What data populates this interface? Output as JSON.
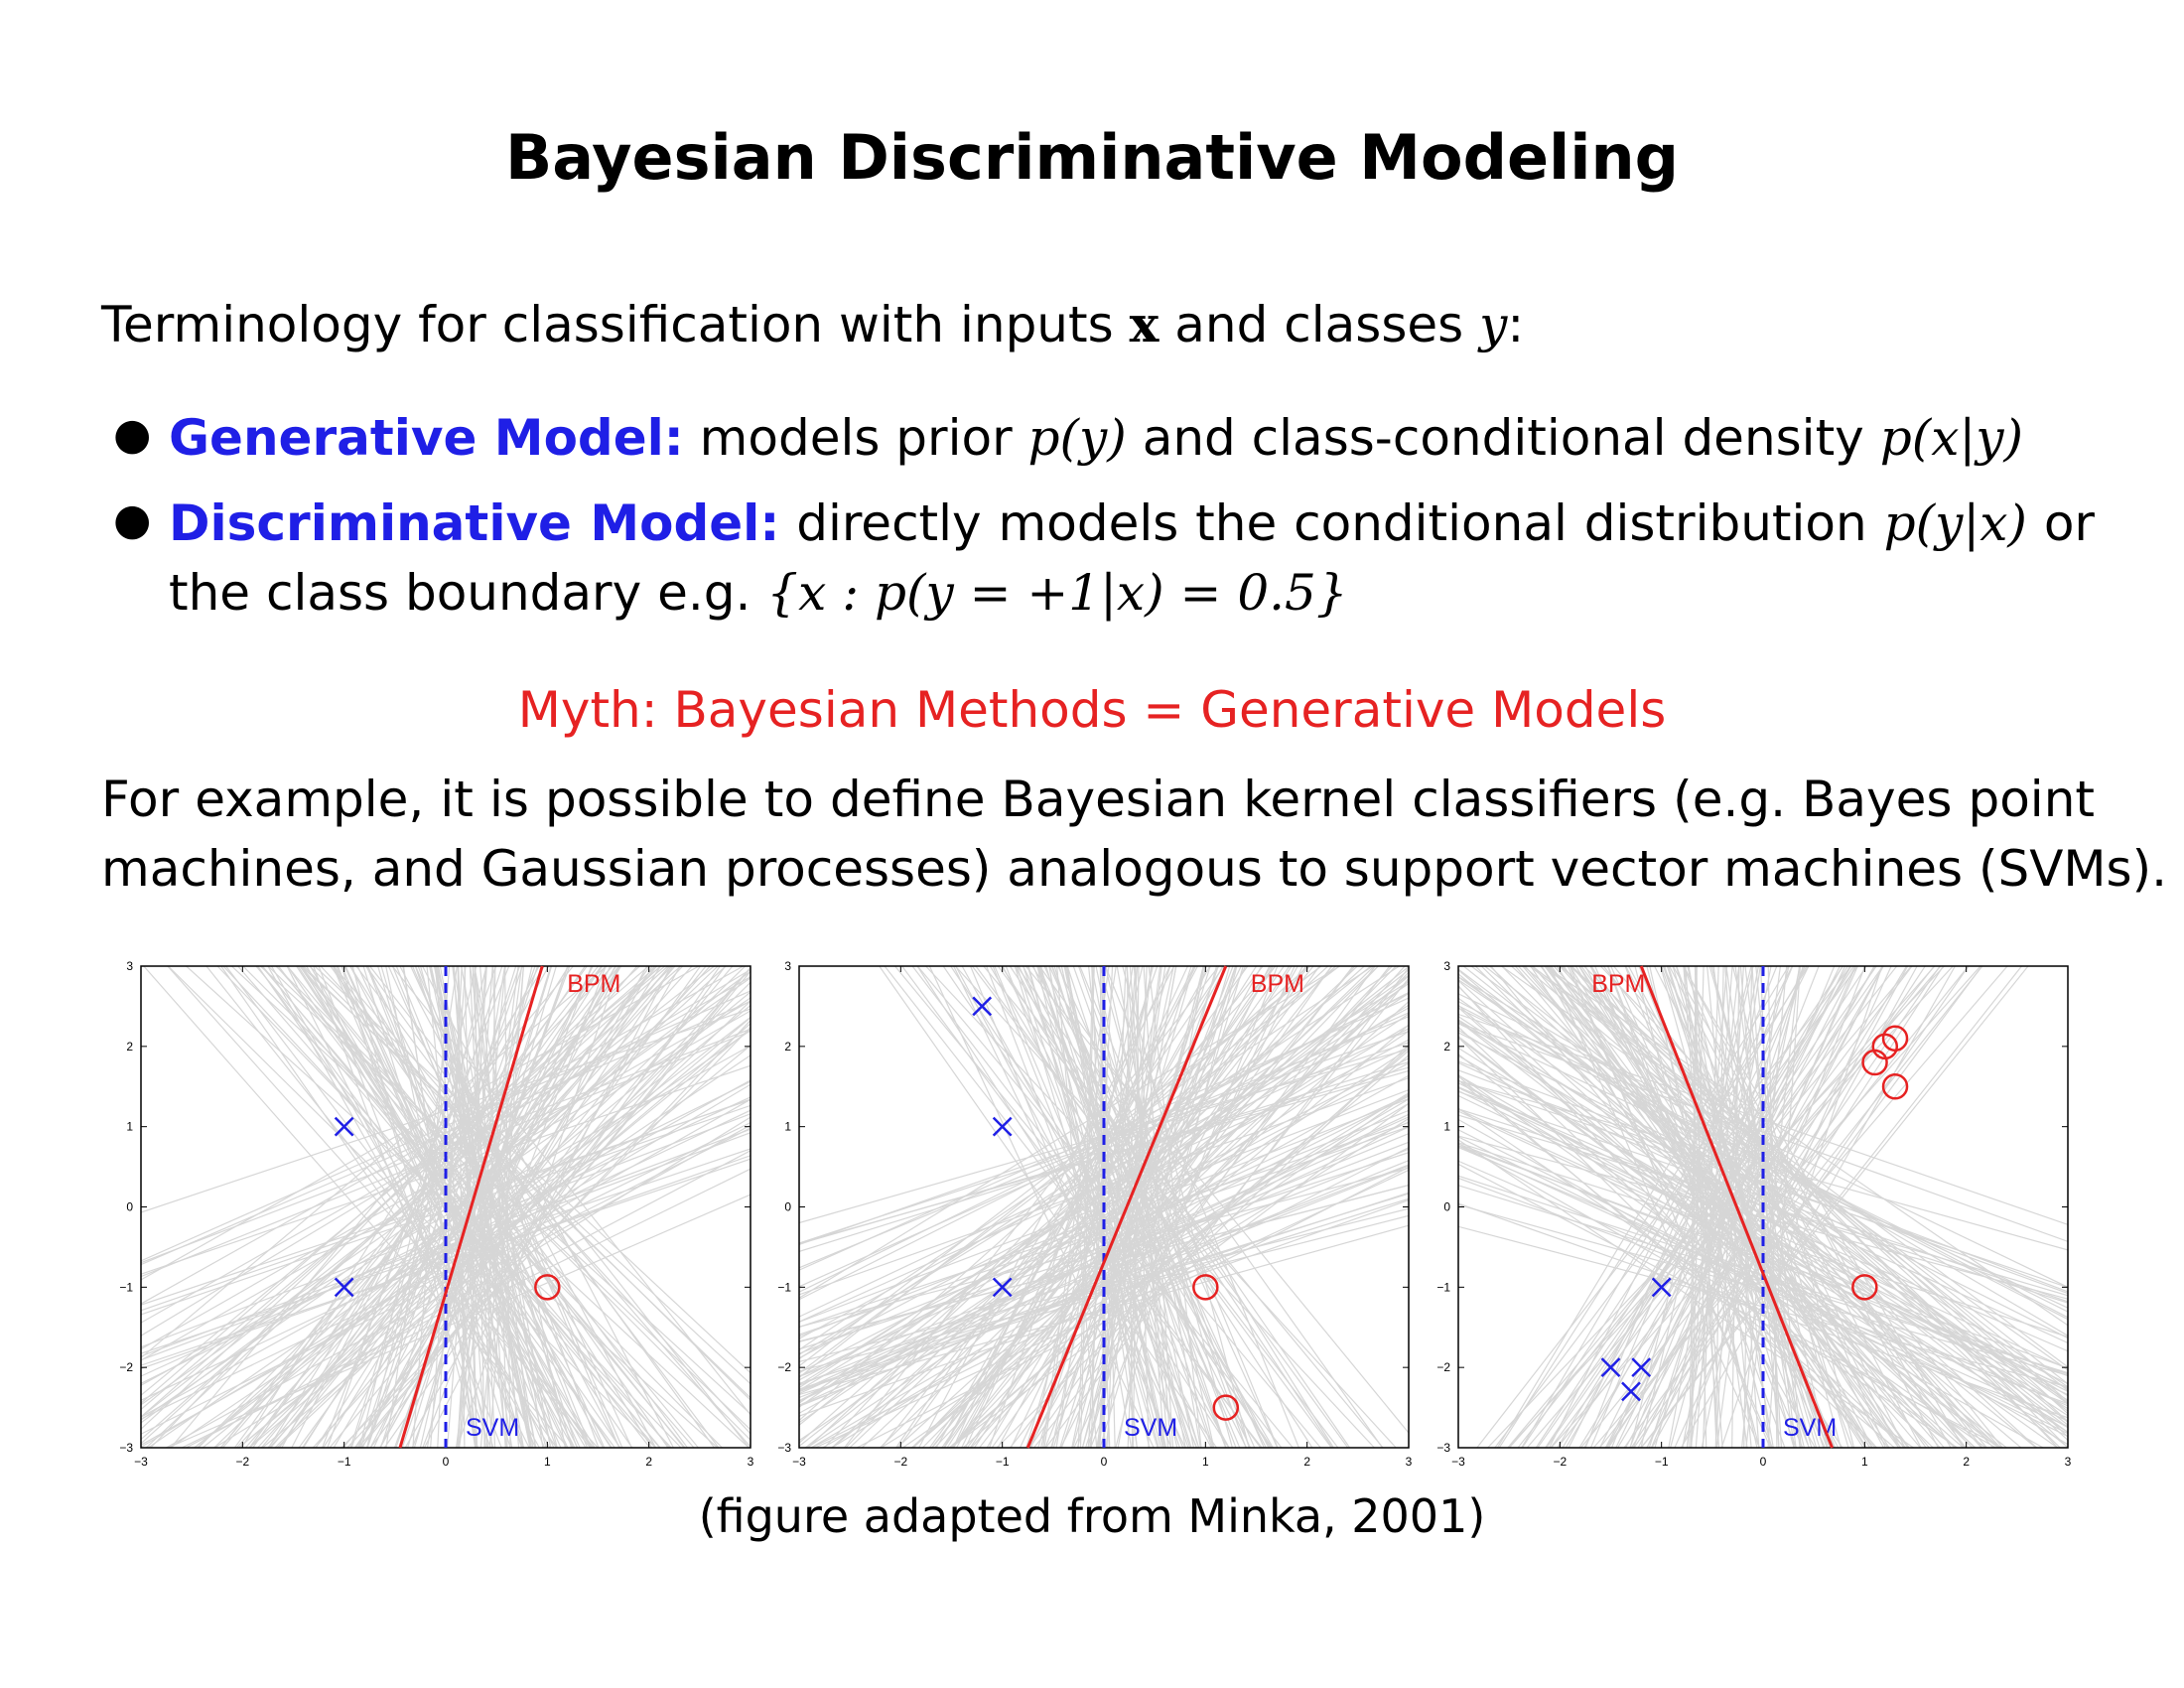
{
  "title": "Bayesian Discriminative Modeling",
  "intro": {
    "text": "Terminology for classification with inputs",
    "x": "x",
    "and": "and classes",
    "y": "y",
    "colon": ":"
  },
  "bullets": [
    {
      "term": "Generative Model:",
      "text": "models prior",
      "m1": "p(y)",
      "mid": "and class-conditional density",
      "m2": "p(x|y)"
    },
    {
      "term": "Discriminative Model:",
      "text": "directly models the conditional distribution",
      "m1": "p(y|x)",
      "or": "or",
      "line2": "the class boundary e.g.",
      "m2": "{x : p(y = +1|x) = 0.5}"
    }
  ],
  "myth": "Myth:  Bayesian Methods = Generative Models",
  "example": {
    "line1": "For example, it is possible to define Bayesian kernel classifiers (e.g. Bayes point",
    "line2": "machines, and Gaussian processes) analogous to support vector machines (SVMs)."
  },
  "caption": "(figure adapted from Minka, 2001)",
  "colors": {
    "term": "#1f1fe6",
    "myth": "#e62222",
    "bpm": "#e62222",
    "svm": "#1f1fe6",
    "sample_lines": "#d6d6d6"
  },
  "chart_data": [
    {
      "type": "scatter",
      "xlim": [
        -3,
        3
      ],
      "ylim": [
        -3,
        3
      ],
      "xticks": [
        "−3",
        "−2",
        "−1",
        "0",
        "1",
        "2",
        "3"
      ],
      "yticks": [
        "−3",
        "−2",
        "−1",
        "0",
        "1",
        "2",
        "3"
      ],
      "neg_points": [
        [
          -1,
          1
        ],
        [
          -1,
          -1
        ]
      ],
      "pos_points": [
        [
          1,
          -1
        ]
      ],
      "svm": {
        "label": "SVM",
        "x": 0
      },
      "bpm": {
        "label": "BPM",
        "p1": [
          -0.45,
          -3
        ],
        "p2": [
          0.95,
          3
        ]
      }
    },
    {
      "type": "scatter",
      "xlim": [
        -3,
        3
      ],
      "ylim": [
        -3,
        3
      ],
      "xticks": [
        "−3",
        "−2",
        "−1",
        "0",
        "1",
        "2",
        "3"
      ],
      "yticks": [
        "−3",
        "−2",
        "−1",
        "0",
        "1",
        "2",
        "3"
      ],
      "neg_points": [
        [
          -1.2,
          2.5
        ],
        [
          -1,
          1
        ],
        [
          -1,
          -1
        ]
      ],
      "pos_points": [
        [
          1,
          -1
        ],
        [
          1.2,
          -2.5
        ]
      ],
      "svm": {
        "label": "SVM",
        "x": 0
      },
      "bpm": {
        "label": "BPM",
        "p1": [
          -0.75,
          -3
        ],
        "p2": [
          1.2,
          3
        ]
      }
    },
    {
      "type": "scatter",
      "xlim": [
        -3,
        3
      ],
      "ylim": [
        -3,
        3
      ],
      "xticks": [
        "−3",
        "−2",
        "−1",
        "0",
        "1",
        "2",
        "3"
      ],
      "yticks": [
        "−3",
        "−2",
        "−1",
        "0",
        "1",
        "2",
        "3"
      ],
      "neg_points": [
        [
          -1,
          -1
        ],
        [
          -1.5,
          -2
        ],
        [
          -1.2,
          -2
        ],
        [
          -1.3,
          -2.3
        ]
      ],
      "pos_points": [
        [
          1,
          -1
        ],
        [
          1.1,
          1.8
        ],
        [
          1.2,
          2
        ],
        [
          1.3,
          2.1
        ],
        [
          1.3,
          1.5
        ]
      ],
      "svm": {
        "label": "SVM",
        "x": 0
      },
      "bpm": {
        "label": "BPM",
        "p1": [
          -1.2,
          3
        ],
        "p2": [
          0.68,
          -3
        ]
      }
    }
  ]
}
